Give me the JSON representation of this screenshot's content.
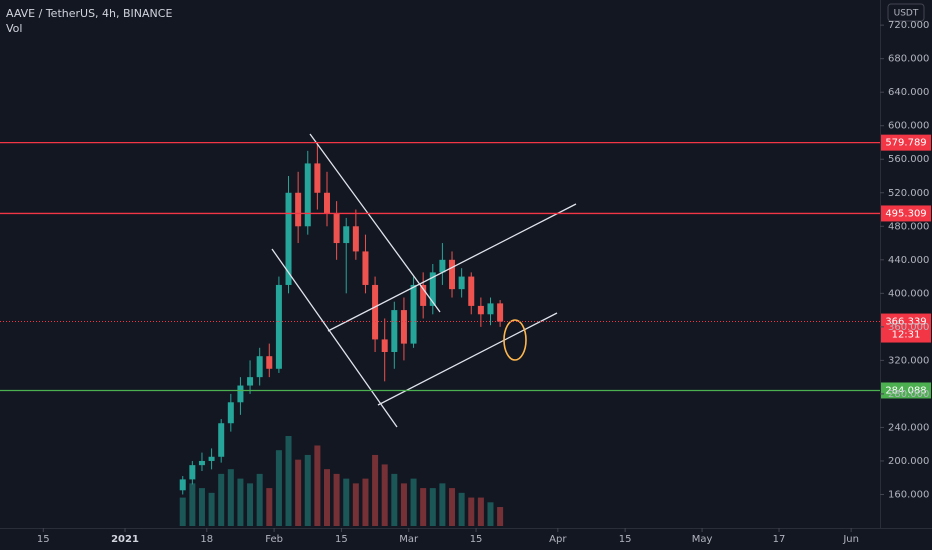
{
  "chart_data": {
    "type": "candlestick",
    "title": "AAVE / TetherUS, 4h, BINANCE",
    "volume_label": "Vol",
    "currency": "USDT",
    "colors": {
      "up": "#26a69a",
      "down": "#ef5350"
    },
    "ylim": [
      120,
      750
    ],
    "yticks": [
      {
        "value": 160,
        "label": "160.000"
      },
      {
        "value": 200,
        "label": "200.000"
      },
      {
        "value": 240,
        "label": "240.000"
      },
      {
        "value": 280,
        "label": "280.000"
      },
      {
        "value": 320,
        "label": "320.000"
      },
      {
        "value": 360,
        "label": "360.000"
      },
      {
        "value": 400,
        "label": "400.000"
      },
      {
        "value": 440,
        "label": "440.000"
      },
      {
        "value": 480,
        "label": "480.000"
      },
      {
        "value": 520,
        "label": "520.000"
      },
      {
        "value": 560,
        "label": "560.000"
      },
      {
        "value": 600,
        "label": "600.000"
      },
      {
        "value": 640,
        "label": "640.000"
      },
      {
        "value": 680,
        "label": "680.000"
      },
      {
        "value": 720,
        "label": "720.000"
      }
    ],
    "xlim": [
      "2020-12-06",
      "2021-06-07"
    ],
    "xticks": [
      {
        "value": "2020-12-15",
        "label": "15"
      },
      {
        "value": "2021-01-01",
        "label": "2021"
      },
      {
        "value": "2021-01-18",
        "label": "18"
      },
      {
        "value": "2021-02-01",
        "label": "Feb"
      },
      {
        "value": "2021-02-15",
        "label": "15"
      },
      {
        "value": "2021-03-01",
        "label": "Mar"
      },
      {
        "value": "2021-03-15",
        "label": "15"
      },
      {
        "value": "2021-04-01",
        "label": "Apr"
      },
      {
        "value": "2021-04-15",
        "label": "15"
      },
      {
        "value": "2021-05-01",
        "label": "May"
      },
      {
        "value": "2021-05-17",
        "label": "17"
      },
      {
        "value": "2021-06-01",
        "label": "Jun"
      }
    ],
    "candles": {
      "x": [
        "2021-01-13",
        "2021-01-15",
        "2021-01-17",
        "2021-01-19",
        "2021-01-21",
        "2021-01-23",
        "2021-01-25",
        "2021-01-27",
        "2021-01-29",
        "2021-01-31",
        "2021-02-02",
        "2021-02-04",
        "2021-02-06",
        "2021-02-08",
        "2021-02-10",
        "2021-02-12",
        "2021-02-14",
        "2021-02-16",
        "2021-02-18",
        "2021-02-20",
        "2021-02-22",
        "2021-02-24",
        "2021-02-26",
        "2021-02-28",
        "2021-03-02",
        "2021-03-04",
        "2021-03-06",
        "2021-03-08",
        "2021-03-10",
        "2021-03-12",
        "2021-03-14",
        "2021-03-16",
        "2021-03-18",
        "2021-03-20"
      ],
      "open": [
        165,
        178,
        195,
        200,
        205,
        245,
        270,
        290,
        300,
        325,
        310,
        410,
        520,
        480,
        555,
        520,
        495,
        460,
        480,
        450,
        410,
        345,
        330,
        380,
        340,
        410,
        385,
        425,
        440,
        405,
        420,
        385,
        375,
        388
      ],
      "high": [
        182,
        200,
        210,
        215,
        250,
        280,
        300,
        320,
        335,
        340,
        420,
        540,
        545,
        570,
        579,
        545,
        510,
        490,
        500,
        470,
        420,
        370,
        390,
        395,
        420,
        425,
        435,
        460,
        450,
        430,
        425,
        395,
        395,
        392
      ],
      "low": [
        160,
        172,
        188,
        190,
        198,
        235,
        255,
        280,
        290,
        300,
        305,
        400,
        460,
        470,
        500,
        480,
        440,
        400,
        440,
        400,
        330,
        295,
        310,
        320,
        335,
        370,
        375,
        410,
        395,
        395,
        375,
        360,
        362,
        360
      ],
      "close": [
        178,
        195,
        200,
        205,
        245,
        270,
        290,
        300,
        325,
        310,
        410,
        520,
        480,
        555,
        520,
        495,
        460,
        480,
        450,
        410,
        345,
        330,
        380,
        340,
        410,
        385,
        425,
        440,
        405,
        420,
        385,
        375,
        388,
        366.339
      ],
      "volume": [
        30,
        45,
        40,
        35,
        55,
        60,
        50,
        45,
        55,
        40,
        80,
        95,
        70,
        75,
        85,
        60,
        55,
        50,
        45,
        50,
        75,
        65,
        55,
        45,
        50,
        40,
        40,
        45,
        40,
        35,
        30,
        30,
        25,
        20
      ]
    },
    "levels": [
      {
        "value": 579.789,
        "color": "#f23645"
      },
      {
        "value": 495.309,
        "color": "#f23645"
      },
      {
        "value": 284.088,
        "color": "#4caf50"
      }
    ],
    "last_price": {
      "value": 366.339,
      "countdown": "12:31",
      "color": "#f23645"
    }
  }
}
